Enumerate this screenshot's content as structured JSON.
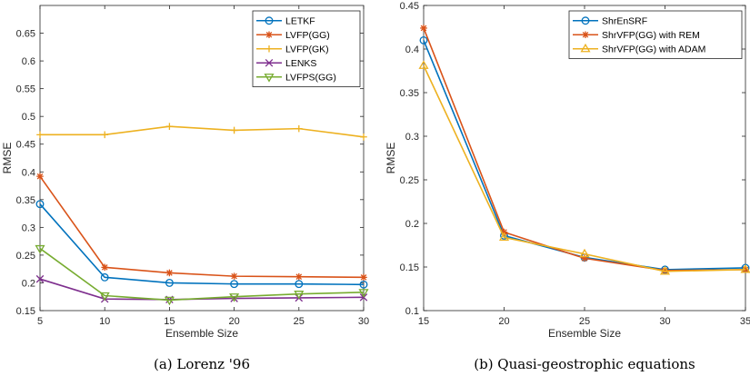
{
  "chart_data": [
    {
      "type": "line",
      "caption": "(a) Lorenz '96",
      "xlabel": "Ensemble Size",
      "ylabel": "RMSE",
      "xlim": [
        5,
        30
      ],
      "ylim": [
        0.15,
        0.7
      ],
      "xticks": [
        "5",
        "10",
        "15",
        "20",
        "25",
        "30"
      ],
      "yticks": [
        "0.15",
        "0.2",
        "0.25",
        "0.3",
        "0.35",
        "0.4",
        "0.45",
        "0.5",
        "0.55",
        "0.6",
        "0.65"
      ],
      "legend_position": "top-right",
      "x": [
        5,
        10,
        15,
        20,
        25,
        30
      ],
      "series": [
        {
          "name": "LETKF",
          "color": "#0072BD",
          "marker": "circle",
          "values": [
            0.342,
            0.21,
            0.2,
            0.198,
            0.198,
            0.197
          ]
        },
        {
          "name": "LVFP(GG)",
          "color": "#D95319",
          "marker": "asterisk",
          "values": [
            0.392,
            0.228,
            0.218,
            0.212,
            0.211,
            0.21
          ]
        },
        {
          "name": "LVFP(GK)",
          "color": "#EDB120",
          "marker": "plus",
          "values": [
            0.467,
            0.467,
            0.482,
            0.475,
            0.478,
            0.463
          ]
        },
        {
          "name": "LENKS",
          "color": "#7E2F8E",
          "marker": "x",
          "values": [
            0.207,
            0.171,
            0.17,
            0.172,
            0.173,
            0.174
          ]
        },
        {
          "name": "LVFPS(GG)",
          "color": "#77AC30",
          "marker": "triangle-down",
          "values": [
            0.262,
            0.177,
            0.169,
            0.175,
            0.18,
            0.183
          ]
        }
      ]
    },
    {
      "type": "line",
      "caption": "(b) Quasi-geostrophic equations",
      "xlabel": "Ensemble Size",
      "ylabel": "RMSE",
      "xlim": [
        15,
        35
      ],
      "ylim": [
        0.1,
        0.45
      ],
      "xticks": [
        "15",
        "20",
        "25",
        "30",
        "35"
      ],
      "yticks": [
        "0.1",
        "0.15",
        "0.2",
        "0.25",
        "0.3",
        "0.35",
        "0.4",
        "0.45"
      ],
      "legend_position": "top-right",
      "x": [
        15,
        20,
        25,
        30,
        35
      ],
      "series": [
        {
          "name": "ShrEnSRF",
          "color": "#0072BD",
          "marker": "circle",
          "values": [
            0.41,
            0.186,
            0.161,
            0.147,
            0.149
          ]
        },
        {
          "name": "ShrVFP(GG) with REM",
          "color": "#D95319",
          "marker": "asterisk",
          "values": [
            0.424,
            0.19,
            0.16,
            0.146,
            0.147
          ]
        },
        {
          "name": "ShrVFP(GG) with ADAM",
          "color": "#EDB120",
          "marker": "triangle-up",
          "values": [
            0.381,
            0.184,
            0.165,
            0.145,
            0.147
          ]
        }
      ]
    }
  ]
}
